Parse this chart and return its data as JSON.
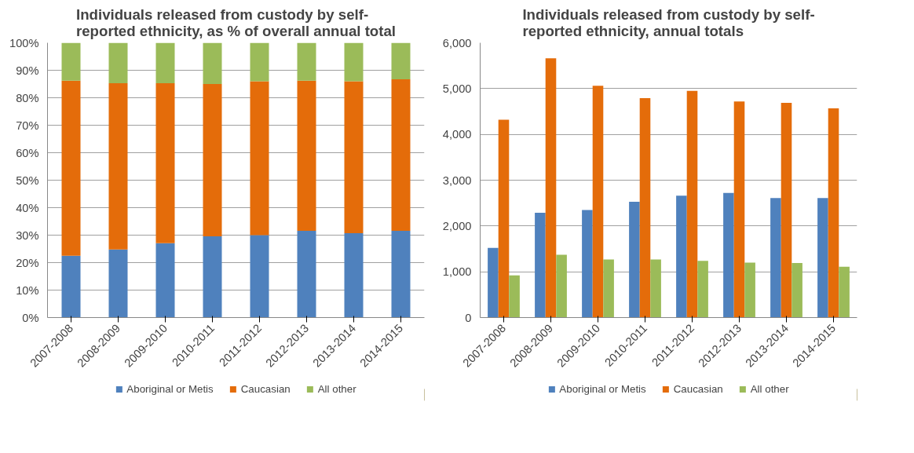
{
  "chart_data": [
    {
      "type": "bar",
      "title": "Individuals released from custody by self-reported ethnicity, as % of overall annual total",
      "stacked": true,
      "categories": [
        "2007-2008",
        "2008-2009",
        "2009-2010",
        "2010-2011",
        "2011-2012",
        "2012-2013",
        "2013-2014",
        "2014-2015"
      ],
      "series": [
        {
          "name": "Aboriginal or Metis",
          "color": "#4f81bd",
          "values": [
            22.5,
            24.8,
            27.1,
            29.6,
            30.0,
            31.6,
            30.7,
            31.6
          ]
        },
        {
          "name": "Caucasian",
          "color": "#e46c0a",
          "values": [
            63.7,
            60.5,
            58.2,
            55.4,
            56.0,
            54.6,
            55.3,
            55.1
          ]
        },
        {
          "name": "All other",
          "color": "#9bbb59",
          "values": [
            13.8,
            14.7,
            14.7,
            15.0,
            14.0,
            13.8,
            14.0,
            13.3
          ]
        }
      ],
      "ylim": [
        0,
        100
      ],
      "yticks": [
        {
          "value": 0,
          "label": "0%"
        },
        {
          "value": 10,
          "label": "10%"
        },
        {
          "value": 20,
          "label": "20%"
        },
        {
          "value": 30,
          "label": "30%"
        },
        {
          "value": 40,
          "label": "40%"
        },
        {
          "value": 50,
          "label": "50%"
        },
        {
          "value": 60,
          "label": "60%"
        },
        {
          "value": 70,
          "label": "70%"
        },
        {
          "value": 80,
          "label": "80%"
        },
        {
          "value": 90,
          "label": "90%"
        },
        {
          "value": 100,
          "label": "100%"
        }
      ],
      "grid": "y",
      "legend": "bottom"
    },
    {
      "type": "bar",
      "title": "Individuals released from custody by self-reported ethnicity, annual totals",
      "categories": [
        "2007-2008",
        "2008-2009",
        "2009-2010",
        "2010-2011",
        "2011-2012",
        "2012-2013",
        "2013-2014",
        "2014-2015"
      ],
      "series": [
        {
          "name": "Aboriginal or Metis",
          "color": "#4f81bd",
          "values": [
            1520,
            2290,
            2350,
            2530,
            2660,
            2720,
            2610,
            2610
          ]
        },
        {
          "name": "Caucasian",
          "color": "#e46c0a",
          "values": [
            4320,
            5660,
            5060,
            4790,
            4950,
            4720,
            4690,
            4570
          ]
        },
        {
          "name": "All other",
          "color": "#9bbb59",
          "values": [
            920,
            1370,
            1270,
            1270,
            1240,
            1200,
            1190,
            1110
          ]
        }
      ],
      "ylim": [
        0,
        6000
      ],
      "yticks": [
        0,
        {
          "value": 1000,
          "label": "1,000"
        },
        {
          "value": 2000,
          "label": "2,000"
        },
        {
          "value": 3000,
          "label": "3,000"
        },
        {
          "value": 4000,
          "label": "4,000"
        },
        {
          "value": 5000,
          "label": "5,000"
        },
        {
          "value": 6000,
          "label": "6,000"
        }
      ],
      "grid": "y",
      "legend": "bottom"
    }
  ]
}
